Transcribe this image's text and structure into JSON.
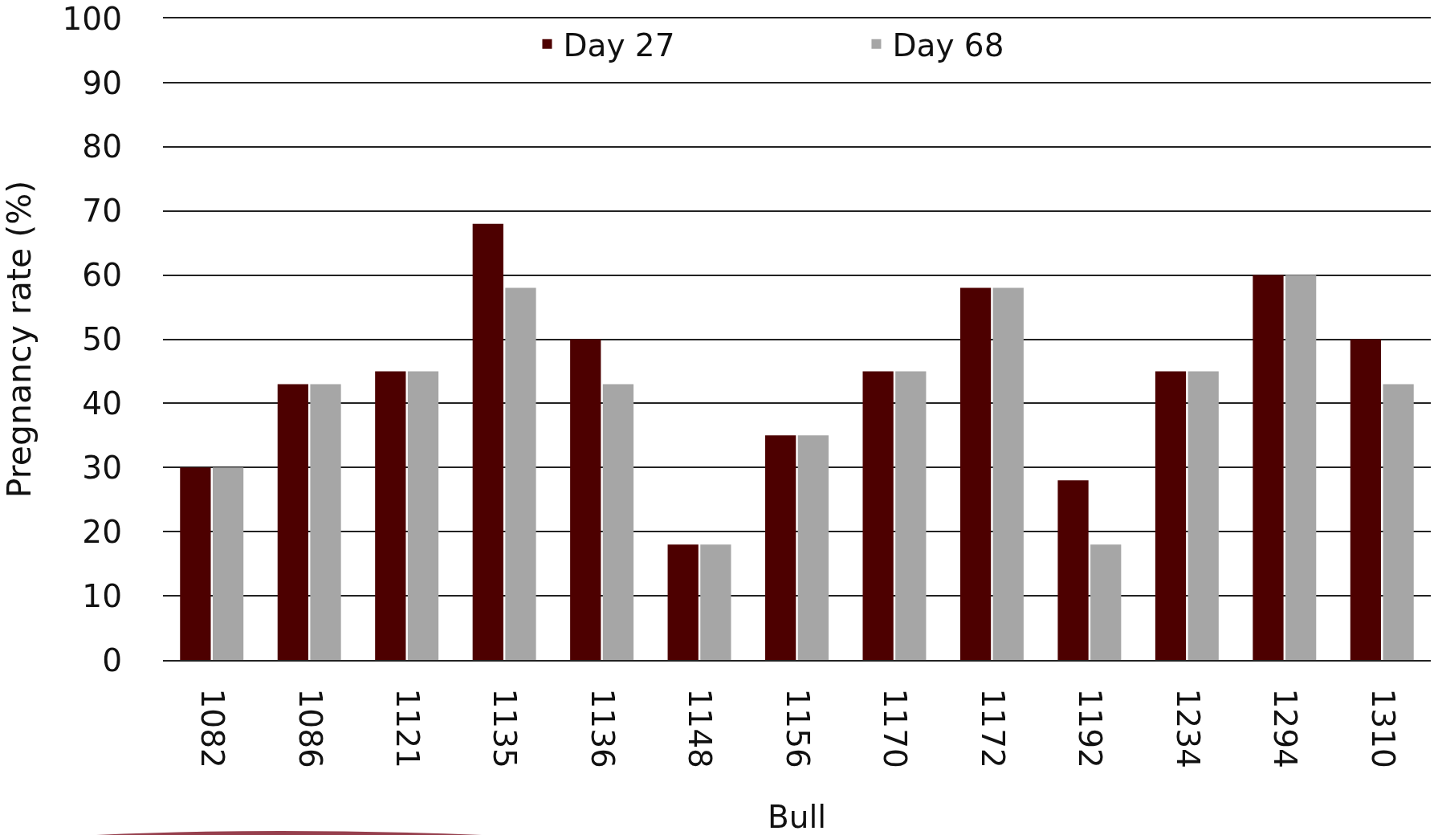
{
  "chart_data": {
    "type": "bar",
    "xlabel": "Bull",
    "ylabel": "Pregnancy rate (%)",
    "categories": [
      "1082",
      "1086",
      "1121",
      "1135",
      "1136",
      "1148",
      "1156",
      "1170",
      "1172",
      "1192",
      "1234",
      "1294",
      "1310"
    ],
    "series": [
      {
        "name": "Day 27",
        "color": "#4d0000",
        "values": [
          30,
          43,
          45,
          68,
          50,
          18,
          35,
          45,
          58,
          28,
          45,
          60,
          50
        ]
      },
      {
        "name": "Day 68",
        "color": "#a6a6a6",
        "values": [
          30,
          43,
          45,
          58,
          43,
          18,
          35,
          45,
          58,
          18,
          45,
          60,
          43
        ]
      }
    ],
    "ylim": [
      0,
      100
    ],
    "yticks": [
      0,
      10,
      20,
      30,
      40,
      50,
      60,
      70,
      80,
      90,
      100
    ],
    "grid": "y",
    "legend": "top"
  }
}
